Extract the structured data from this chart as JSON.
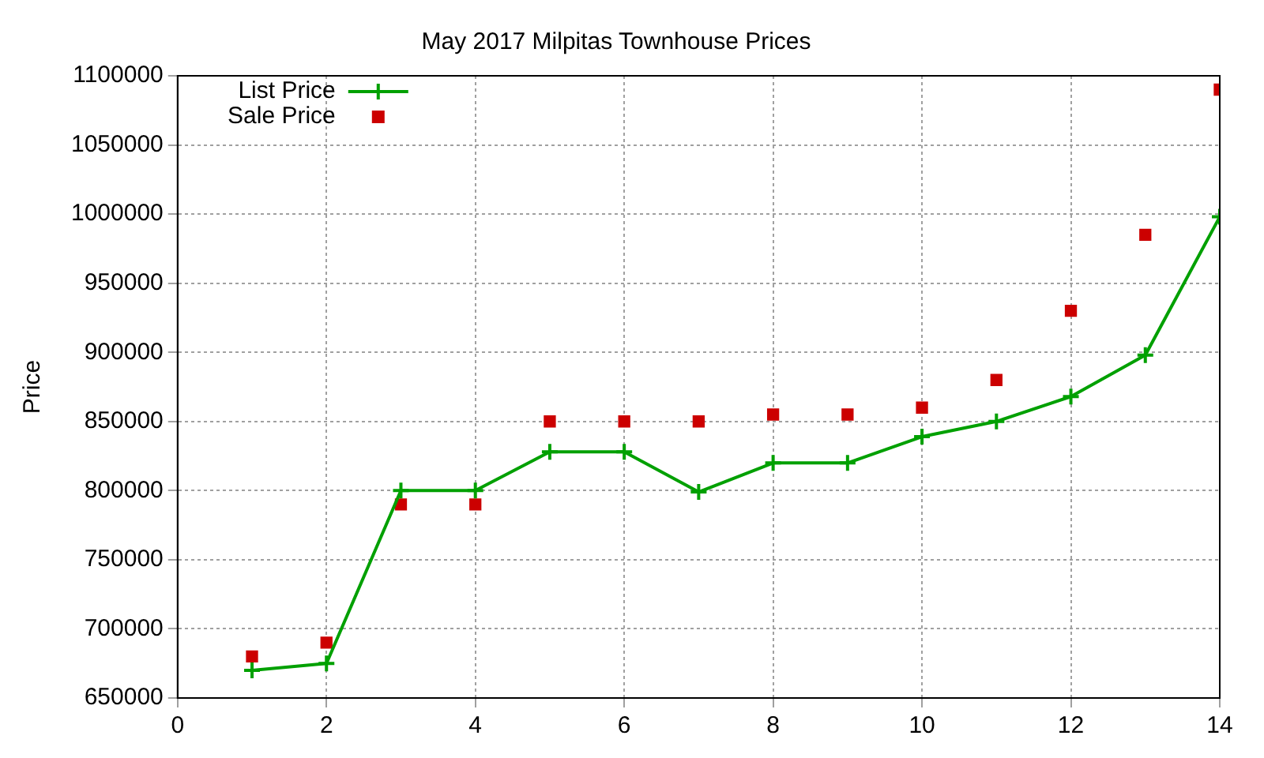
{
  "chart_data": {
    "type": "line",
    "title": "May 2017 Milpitas Townhouse Prices",
    "ylabel": "Price",
    "x": [
      1,
      2,
      3,
      4,
      5,
      6,
      7,
      8,
      9,
      10,
      11,
      12,
      13,
      14
    ],
    "series": [
      {
        "name": "List Price",
        "type": "line",
        "marker": "cross",
        "color": "#00a000",
        "values": [
          670000,
          675000,
          800000,
          800000,
          828000,
          828000,
          799000,
          820000,
          820000,
          839000,
          850000,
          868000,
          898000,
          998000
        ]
      },
      {
        "name": "Sale Price",
        "type": "scatter",
        "marker": "square",
        "color": "#cc0000",
        "values": [
          680000,
          690000,
          790000,
          790000,
          850000,
          850000,
          850000,
          855000,
          855000,
          860000,
          880000,
          930000,
          985000,
          1090000
        ]
      }
    ],
    "xlim": [
      0,
      14
    ],
    "xticks": [
      0,
      2,
      4,
      6,
      8,
      10,
      12,
      14
    ],
    "ylim": [
      650000,
      1100000
    ],
    "yticks": [
      650000,
      700000,
      750000,
      800000,
      850000,
      900000,
      950000,
      1000000,
      1050000,
      1100000
    ],
    "grid": true,
    "legend": "top left"
  }
}
